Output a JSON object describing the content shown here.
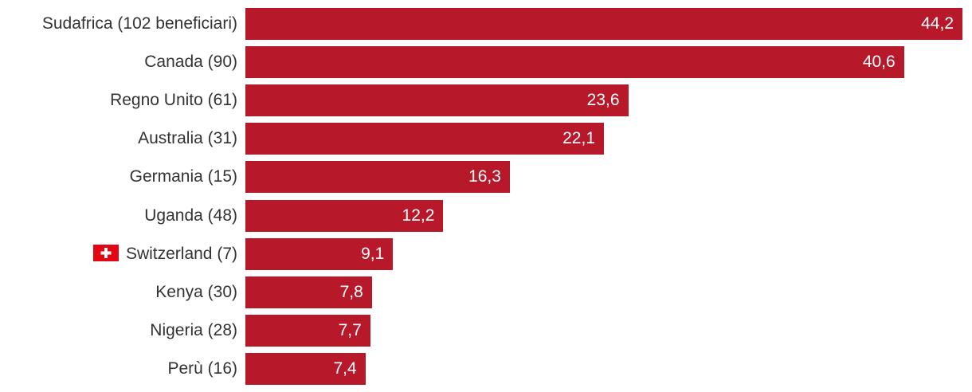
{
  "chart_data": {
    "type": "bar",
    "orientation": "horizontal",
    "categories": [
      "Sudafrica (102 beneficiari)",
      "Canada (90)",
      "Regno Unito (61)",
      "Australia (31)",
      "Germania (15)",
      "Uganda (48)",
      "Switzerland (7)",
      "Kenya (30)",
      "Nigeria (28)",
      "Perù (16)"
    ],
    "values": [
      44.2,
      40.6,
      23.6,
      22.1,
      16.3,
      12.2,
      9.1,
      7.8,
      7.7,
      7.4
    ],
    "value_labels": [
      "44,2",
      "40,6",
      "23,6",
      "22,1",
      "16,3",
      "12,2",
      "9,1",
      "7,8",
      "7,7",
      "7,4"
    ],
    "title": "",
    "xlabel": "",
    "ylabel": "",
    "xlim": [
      0,
      44.2
    ],
    "grid": false,
    "bar_color": "#b8192a",
    "highlight": {
      "category_index": 6,
      "icon": "swiss-flag-icon",
      "flag_color": "#e30613"
    }
  }
}
